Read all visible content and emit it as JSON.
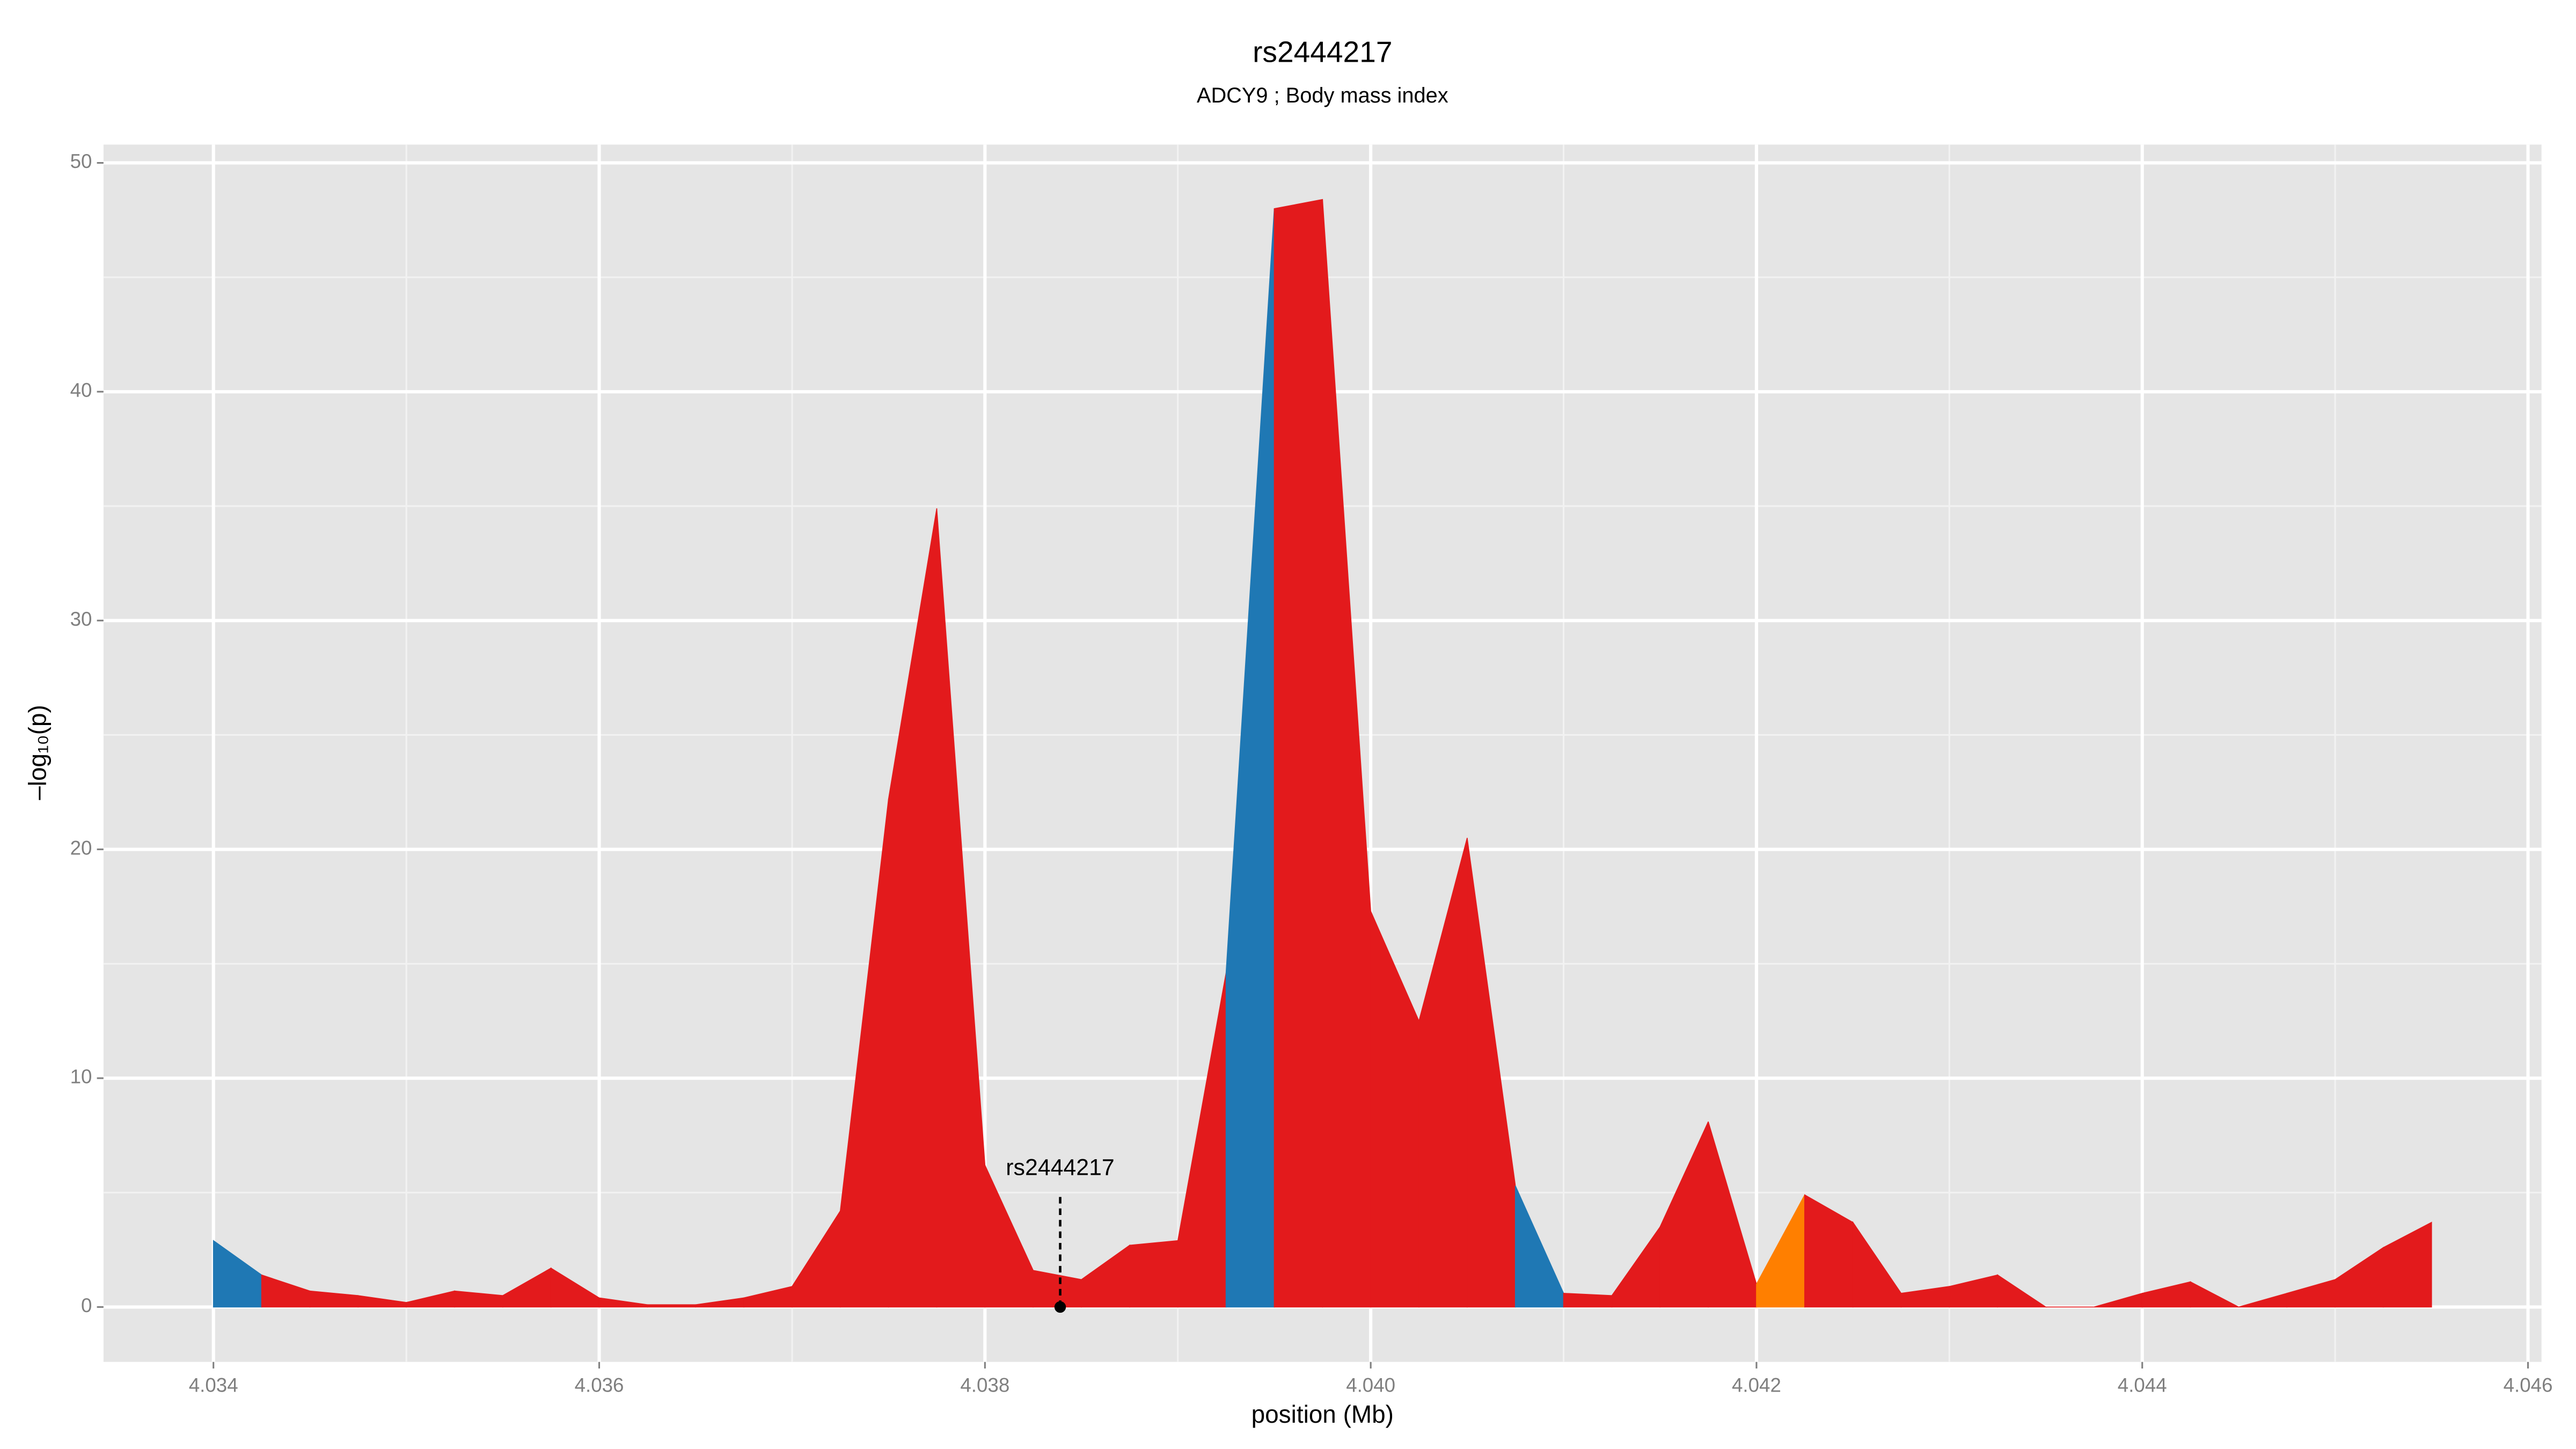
{
  "chart_data": {
    "type": "area",
    "title": "rs2444217",
    "subtitle": "ADCY9 ; Body mass index",
    "xlabel": "position (Mb)",
    "ylabel": "–log₁₀(p)",
    "x": [
      4.034,
      4.03425,
      4.0345,
      4.03475,
      4.035,
      4.03525,
      4.0355,
      4.03575,
      4.036,
      4.03625,
      4.0365,
      4.03675,
      4.037,
      4.03725,
      4.0375,
      4.03775,
      4.038,
      4.03825,
      4.0385,
      4.03875,
      4.039,
      4.03925,
      4.0395,
      4.03975,
      4.04,
      4.04025,
      4.0405,
      4.04075,
      4.041,
      4.04125,
      4.0415,
      4.04175,
      4.042,
      4.04225,
      4.0425,
      4.04275,
      4.043,
      4.04325,
      4.0435,
      4.04375,
      4.044,
      4.04425,
      4.0445,
      4.04475,
      4.045,
      4.04525,
      4.0455
    ],
    "series": [
      {
        "values": [
          2.9,
          1.4,
          0.7,
          0.5,
          0.2,
          0.7,
          0.5,
          1.7,
          0.4,
          0.1,
          0.1,
          0.4,
          0.9,
          4.2,
          22.2,
          34.9,
          6.2,
          1.6,
          1.2,
          2.7,
          2.9,
          14.6,
          48.0,
          48.4,
          17.3,
          12.5,
          20.5,
          5.3,
          0.6,
          0.5,
          3.5,
          8.1,
          1.0,
          4.9,
          3.7,
          0.6,
          0.9,
          1.4,
          0,
          0,
          0.6,
          1.1,
          0,
          0.6,
          1.2,
          2.6,
          3.7
        ],
        "colors": [
          "#1f78b4",
          "#e31a1c",
          "#e31a1c",
          "#e31a1c",
          "#e31a1c",
          "#e31a1c",
          "#e31a1c",
          "#e31a1c",
          "#e31a1c",
          "#e31a1c",
          "#e31a1c",
          "#e31a1c",
          "#e31a1c",
          "#e31a1c",
          "#e31a1c",
          "#e31a1c",
          "#e31a1c",
          "#e31a1c",
          "#e31a1c",
          "#e31a1c",
          "#e31a1c",
          "#1f78b4",
          "#e31a1c",
          "#e31a1c",
          "#e31a1c",
          "#e31a1c",
          "#e31a1c",
          "#1f78b4",
          "#e31a1c",
          "#e31a1c",
          "#e31a1c",
          "#e31a1c",
          "#ff7f00",
          "#e31a1c",
          "#e31a1c",
          "#e31a1c",
          "#e31a1c",
          "#e31a1c",
          "#e31a1c",
          "#e31a1c",
          "#e31a1c",
          "#e31a1c",
          "#e31a1c",
          "#e31a1c",
          "#e31a1c",
          "#e31a1c",
          "#e31a1c"
        ]
      }
    ],
    "annotation": {
      "text": "rs2444217",
      "x": 4.03839,
      "y": 0
    },
    "xlim": [
      4.03343,
      4.04607
    ],
    "ylim": [
      -2.4,
      50.8
    ],
    "xticks": [
      4.034,
      4.036,
      4.038,
      {
        "value": 4.04,
        "label": "4.040"
      },
      4.042,
      4.044,
      4.046
    ],
    "yticks": [
      0,
      10,
      20,
      30,
      40,
      50
    ],
    "grid": true
  }
}
